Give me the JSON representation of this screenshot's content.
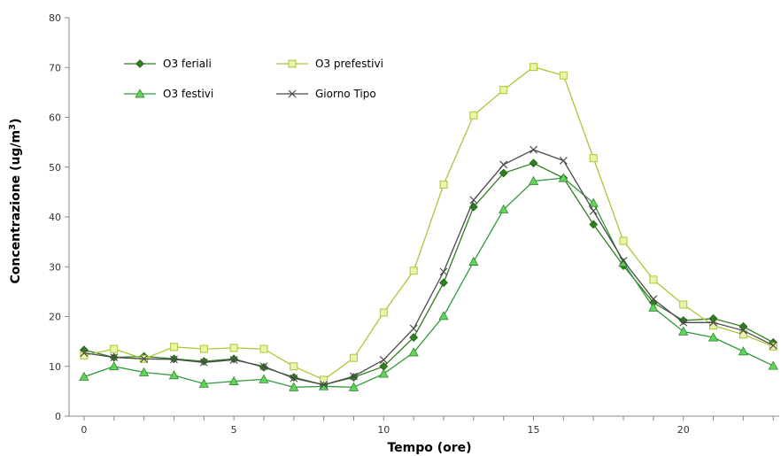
{
  "chart_data": {
    "type": "line",
    "title": "",
    "xlabel": "Tempo (ore)",
    "ylabel_main": "Concentrazione (ug/m",
    "ylabel_sup": "3",
    "ylabel_close": ")",
    "xlim": [
      -0.5,
      23.2
    ],
    "ylim": [
      0,
      80
    ],
    "xticks": [
      0,
      5,
      10,
      15,
      20
    ],
    "yticks": [
      0,
      10,
      20,
      30,
      40,
      50,
      60,
      70,
      80
    ],
    "grid": false,
    "legend_position": "top-left",
    "x": [
      0,
      1,
      2,
      3,
      4,
      5,
      6,
      7,
      8,
      9,
      10,
      11,
      12,
      13,
      14,
      15,
      16,
      17,
      18,
      19,
      20,
      21,
      22,
      23
    ],
    "series": [
      {
        "name": "O3 feriali",
        "color": "#2e7d1e",
        "marker": "diamond",
        "values": [
          13.3,
          11.8,
          12.0,
          11.5,
          11.0,
          11.5,
          9.8,
          7.8,
          6.3,
          7.8,
          10.0,
          15.8,
          26.8,
          42.0,
          48.8,
          50.8,
          47.8,
          38.5,
          30.2,
          22.8,
          19.2,
          19.6,
          18.0,
          14.8
        ]
      },
      {
        "name": "O3 prefestivi",
        "color": "#a8c83a",
        "marker": "square",
        "values": [
          12.2,
          13.5,
          11.5,
          13.9,
          13.5,
          13.7,
          13.5,
          10.0,
          7.3,
          11.7,
          20.8,
          29.2,
          46.5,
          60.4,
          65.5,
          70.1,
          68.4,
          51.8,
          35.2,
          27.4,
          22.4,
          18.2,
          16.4,
          14.0
        ]
      },
      {
        "name": "O3 festivi",
        "color": "#2f9a3a",
        "marker": "triangle",
        "values": [
          7.9,
          10.0,
          8.8,
          8.2,
          6.5,
          7.0,
          7.4,
          5.8,
          6.0,
          5.8,
          8.5,
          12.8,
          20.1,
          31.0,
          41.5,
          47.2,
          47.8,
          42.8,
          30.8,
          21.8,
          17.0,
          15.8,
          13.0,
          10.1
        ]
      },
      {
        "name": "Giorno Tipo",
        "color": "#4a4a4a",
        "marker": "x",
        "values": [
          12.7,
          11.8,
          11.5,
          11.4,
          10.8,
          11.3,
          10.0,
          7.6,
          6.3,
          8.0,
          11.3,
          17.6,
          29.0,
          43.4,
          50.5,
          53.5,
          51.3,
          41.2,
          31.2,
          23.5,
          18.8,
          18.8,
          17.2,
          14.2
        ]
      }
    ]
  }
}
